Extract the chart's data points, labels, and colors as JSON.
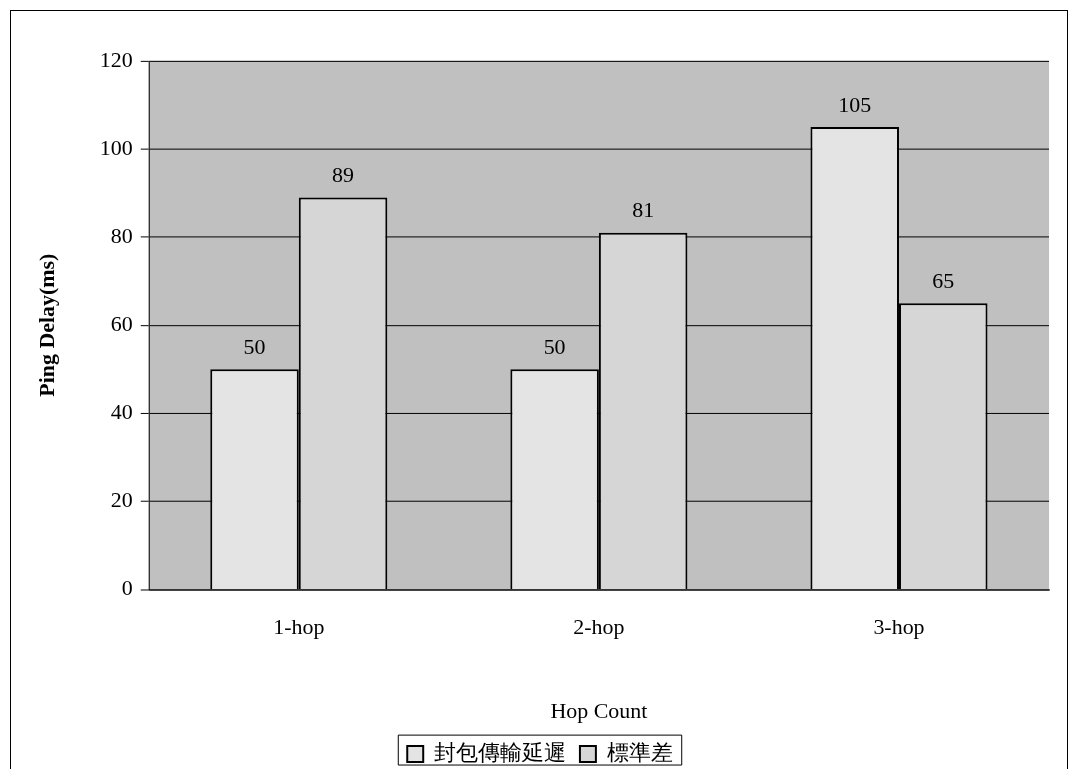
{
  "chart_data": {
    "type": "bar",
    "xlabel": "Hop Count",
    "ylabel": "Ping Delay(ms)",
    "categories": [
      "1-hop",
      "2-hop",
      "3-hop"
    ],
    "series": [
      {
        "name": "封包傳輸延遲",
        "color": "#e4e4e4",
        "values": [
          50,
          50,
          105
        ]
      },
      {
        "name": "標準差",
        "color": "#d6d6d6",
        "values": [
          89,
          81,
          65
        ]
      }
    ],
    "ylim": [
      0,
      120
    ],
    "yticks": [
      0,
      20,
      40,
      60,
      80,
      100,
      120
    ],
    "grid": "y",
    "legend": "bottom",
    "data_labels": true
  }
}
